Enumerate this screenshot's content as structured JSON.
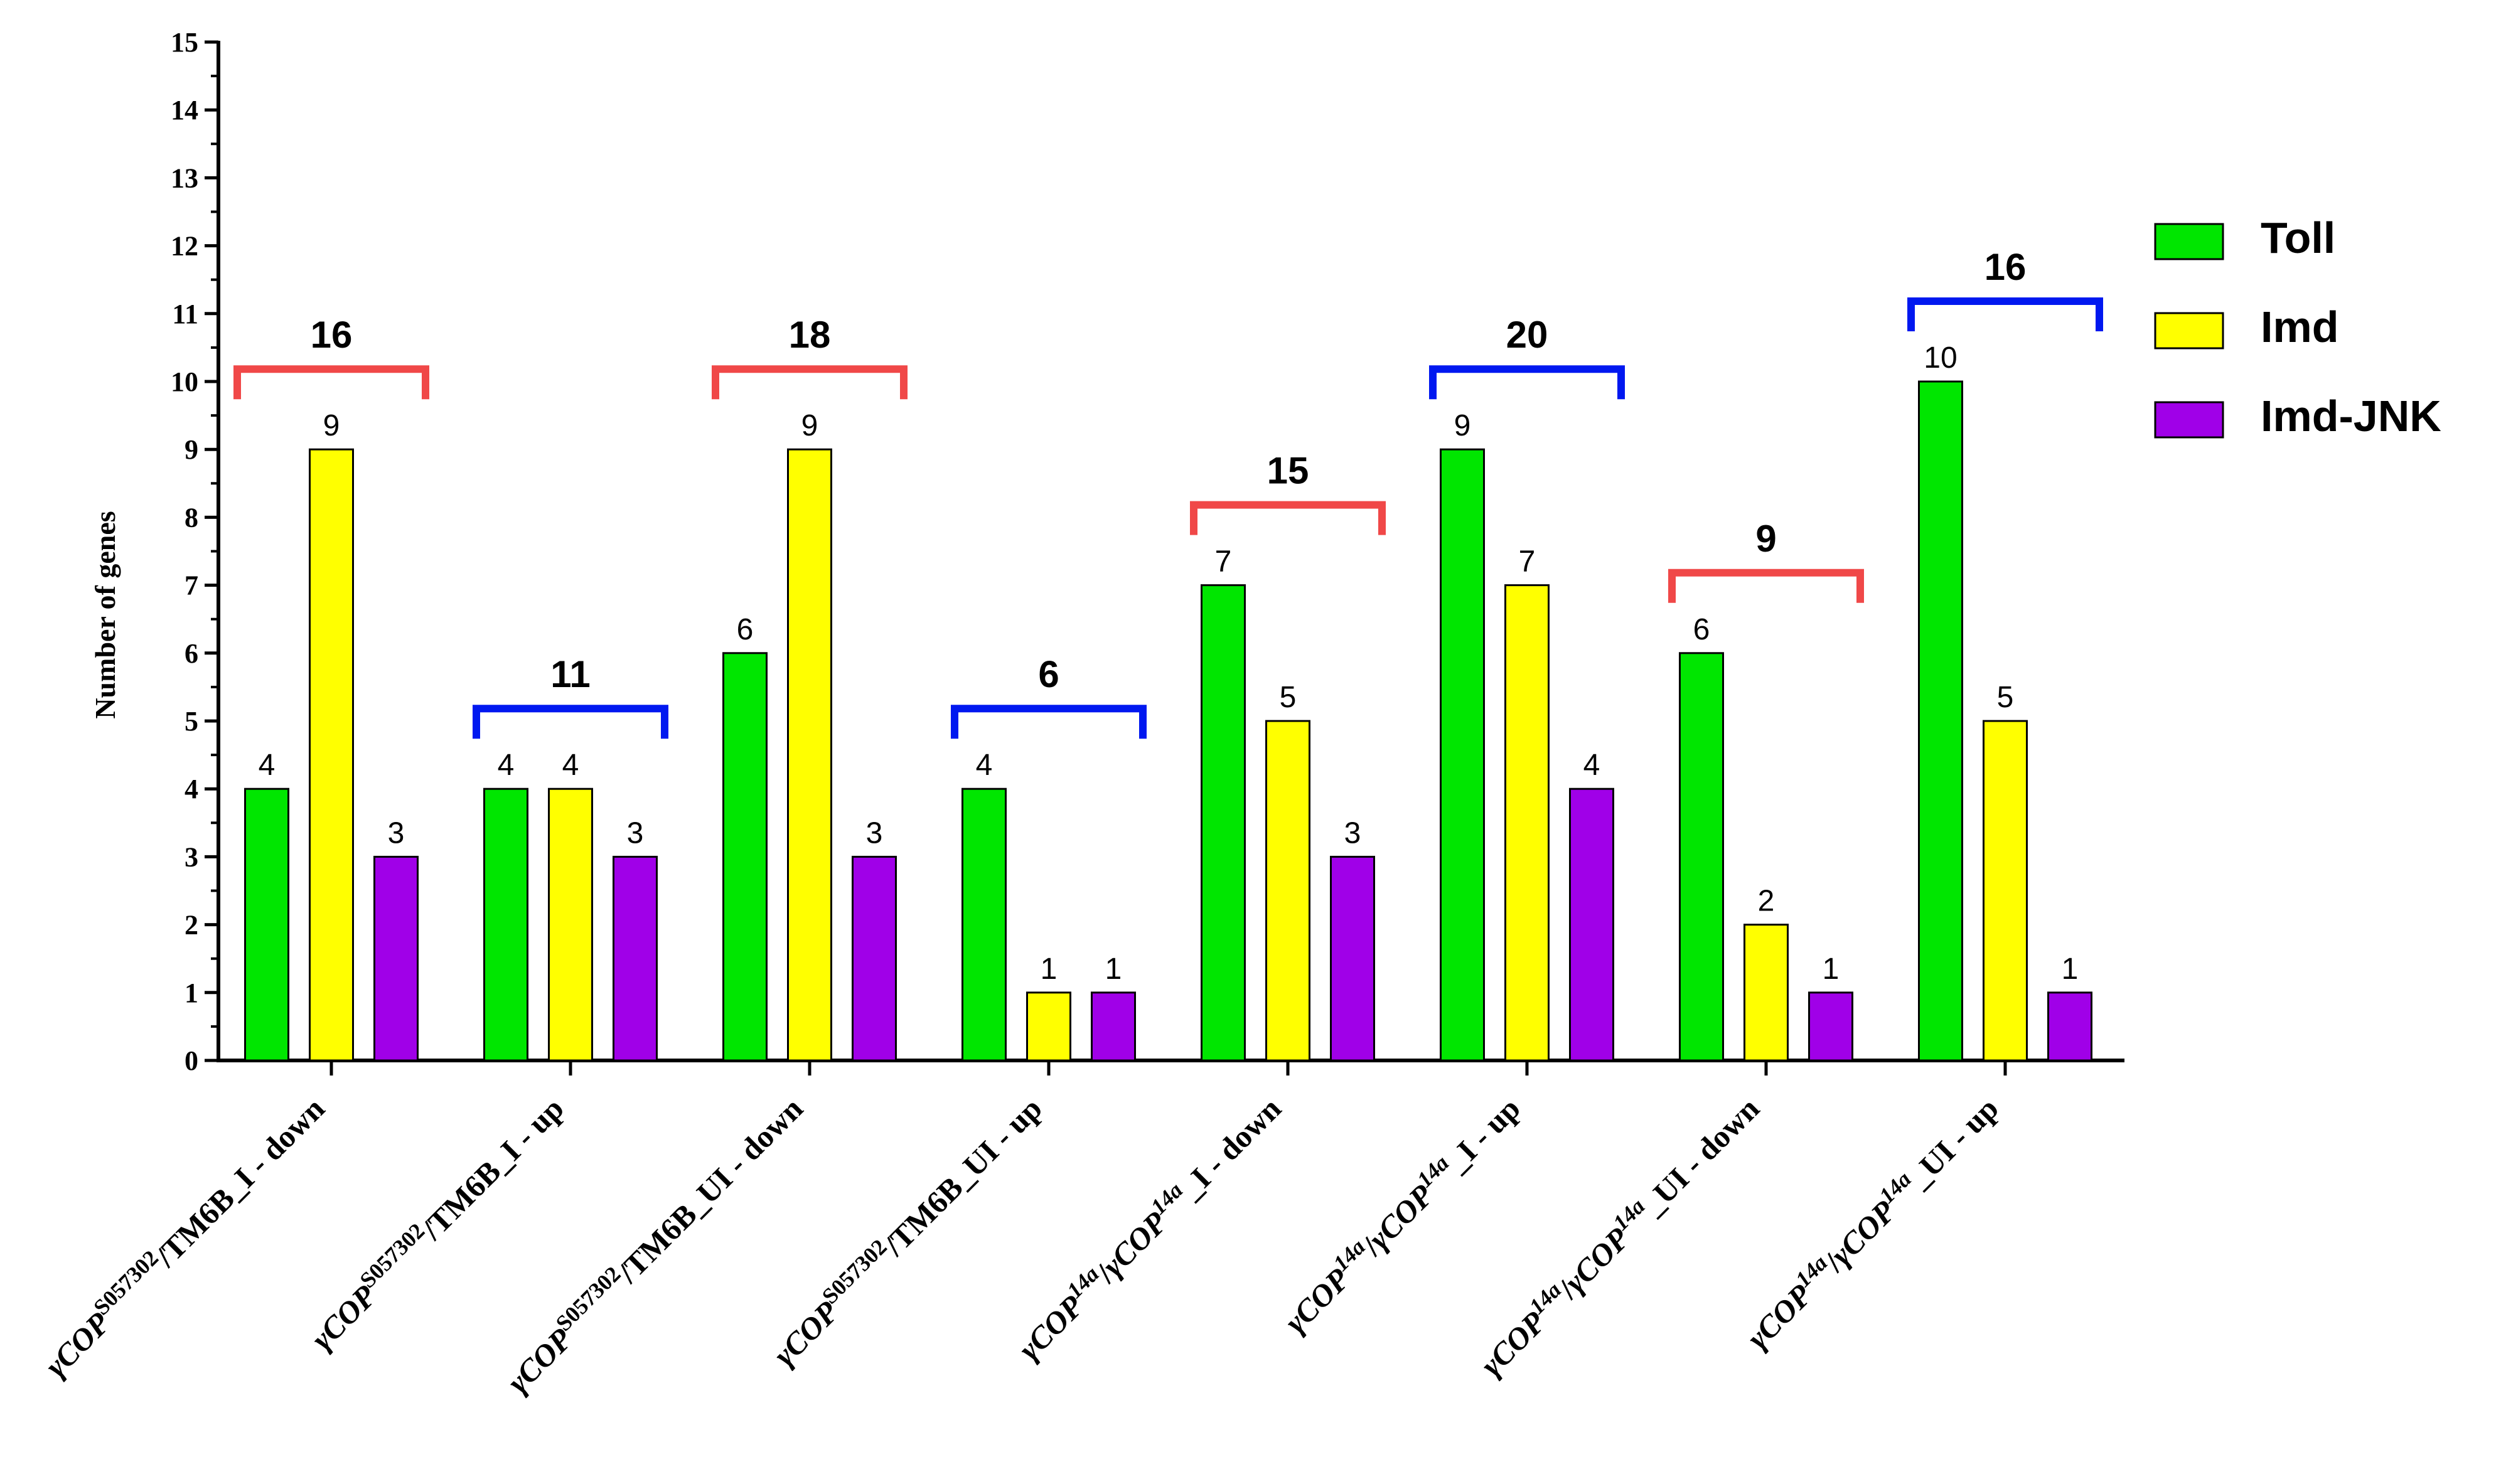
{
  "chart_data": {
    "type": "bar",
    "ylabel": "Number of genes",
    "ylim": [
      0,
      15
    ],
    "y_ticks": [
      "0",
      "1",
      "2",
      "3",
      "4",
      "5",
      "6",
      "7",
      "8",
      "9",
      "10",
      "11",
      "12",
      "13",
      "14",
      "15"
    ],
    "legend_position": "right",
    "categories": [
      "γCOP^S057302/TM6B_I - down",
      "γCOP^S057302/TM6B_I - up",
      "γCOP^S057302/TM6B_UI - down",
      "γCOP^S057302/TM6B_UI - up",
      "γCOP^14a/γCOP^14a_I - down",
      "γCOP^14a/γCOP^14a_I - up",
      "γCOP^14a/γCOP^14a_UI - down",
      "γCOP^14a/γCOP^14a_UI - up"
    ],
    "category_labels": [
      {
        "pre": "γCOP",
        "sup": "S057302",
        "post": "/TM6B_I - down"
      },
      {
        "pre": "γCOP",
        "sup": "S057302",
        "post": "/TM6B_I - up"
      },
      {
        "pre": "γCOP",
        "sup": "S057302",
        "post": "/TM6B_UI - down"
      },
      {
        "pre": "γCOP",
        "sup": "S057302",
        "post": "/TM6B_UI - up"
      },
      {
        "pre": "γCOP",
        "sup": "14a",
        "post": "/γCOP",
        "sup2": "14a",
        "post2": "_I - down"
      },
      {
        "pre": "γCOP",
        "sup": "14a",
        "post": "/γCOP",
        "sup2": "14a",
        "post2": "_I - up"
      },
      {
        "pre": "γCOP",
        "sup": "14a",
        "post": "/γCOP",
        "sup2": "14a",
        "post2": "_UI - down"
      },
      {
        "pre": "γCOP",
        "sup": "14a",
        "post": "/γCOP",
        "sup2": "14a",
        "post2": "_UI - up"
      }
    ],
    "series": [
      {
        "name": "Toll",
        "color": "#00e600",
        "values": [
          4,
          4,
          6,
          4,
          7,
          9,
          6,
          10
        ]
      },
      {
        "name": "Imd",
        "color": "#ffff00",
        "values": [
          9,
          4,
          9,
          1,
          5,
          7,
          2,
          5
        ]
      },
      {
        "name": "Imd-JNK",
        "color": "#a000e8",
        "values": [
          3,
          3,
          3,
          1,
          3,
          4,
          1,
          1
        ]
      }
    ],
    "totals": [
      {
        "value": "16",
        "color": "#f04848"
      },
      {
        "value": "11",
        "color": "#0018f0"
      },
      {
        "value": "18",
        "color": "#f04848"
      },
      {
        "value": "6",
        "color": "#0018f0"
      },
      {
        "value": "15",
        "color": "#f04848"
      },
      {
        "value": "20",
        "color": "#0018f0"
      },
      {
        "value": "9",
        "color": "#f04848"
      },
      {
        "value": "16",
        "color": "#0018f0"
      }
    ]
  }
}
